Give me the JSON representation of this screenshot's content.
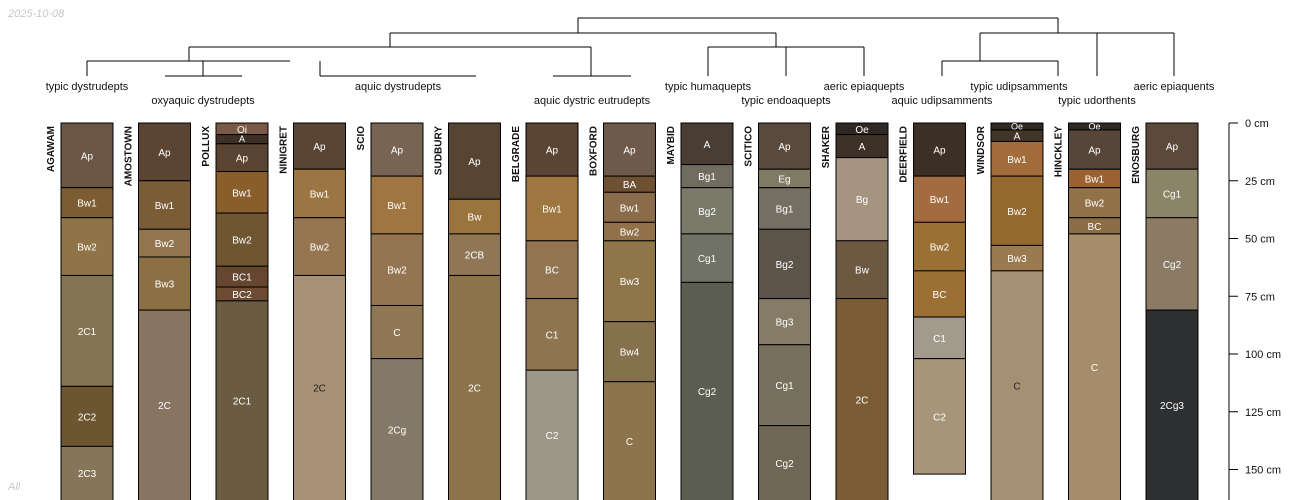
{
  "date": "2025-10-08",
  "footer": "All",
  "depth_axis": {
    "unit": "cm",
    "max": 162,
    "ticks": [
      {
        "depth": 0,
        "label": "0 cm"
      },
      {
        "depth": 25,
        "label": "25 cm"
      },
      {
        "depth": 50,
        "label": "50 cm"
      },
      {
        "depth": 75,
        "label": "75 cm"
      },
      {
        "depth": 100,
        "label": "100 cm"
      },
      {
        "depth": 125,
        "label": "125 cm"
      },
      {
        "depth": 150,
        "label": "150 cm"
      }
    ]
  },
  "taxa": [
    {
      "label": "typic dystrudepts",
      "row": 1
    },
    {
      "label": "oxyaquic dystrudepts",
      "row": 2
    },
    {
      "label": "aquic dystrudepts",
      "row": 1
    },
    {
      "label": "aquic dystric eutrudepts",
      "row": 2
    },
    {
      "label": "typic humaquepts",
      "row": 1
    },
    {
      "label": "typic endoaquepts",
      "row": 2
    },
    {
      "label": "aeric epiaquepts",
      "row": 1
    },
    {
      "label": "aquic udipsamments",
      "row": 2
    },
    {
      "label": "typic udipsamments",
      "row": 1
    },
    {
      "label": "typic udorthents",
      "row": 2
    },
    {
      "label": "aeric epiaquents",
      "row": 1
    }
  ],
  "profiles": [
    {
      "name": "AGAWAM",
      "horizons": [
        {
          "name": "Ap",
          "top": 0,
          "bottom": 28,
          "color": "#6b5646"
        },
        {
          "name": "Bw1",
          "top": 28,
          "bottom": 41,
          "color": "#7c5d33"
        },
        {
          "name": "Bw2",
          "top": 41,
          "bottom": 66,
          "color": "#8f7447"
        },
        {
          "name": "2C1",
          "top": 66,
          "bottom": 114,
          "color": "#857452"
        },
        {
          "name": "2C2",
          "top": 114,
          "bottom": 140,
          "color": "#6c5631"
        },
        {
          "name": "2C3",
          "top": 140,
          "bottom": 165,
          "color": "#857659"
        }
      ]
    },
    {
      "name": "AMOSTOWN",
      "horizons": [
        {
          "name": "Ap",
          "top": 0,
          "bottom": 25,
          "color": "#5b4532"
        },
        {
          "name": "Bw1",
          "top": 25,
          "bottom": 46,
          "color": "#7a5c36"
        },
        {
          "name": "Bw2",
          "top": 46,
          "bottom": 58,
          "color": "#92744f"
        },
        {
          "name": "Bw3",
          "top": 58,
          "bottom": 81,
          "color": "#8c7045"
        },
        {
          "name": "2C",
          "top": 81,
          "bottom": 165,
          "color": "#877562"
        }
      ]
    },
    {
      "name": "POLLUX",
      "horizons": [
        {
          "name": "Oi",
          "top": 0,
          "bottom": 5,
          "color": "#7a5a45"
        },
        {
          "name": "A",
          "top": 5,
          "bottom": 9,
          "color": "#3e3024"
        },
        {
          "name": "Ap",
          "top": 9,
          "bottom": 21,
          "color": "#5a4330"
        },
        {
          "name": "Bw1",
          "top": 21,
          "bottom": 39,
          "color": "#8a5e2a"
        },
        {
          "name": "Bw2",
          "top": 39,
          "bottom": 62,
          "color": "#6f5633"
        },
        {
          "name": "BC1",
          "top": 62,
          "bottom": 71,
          "color": "#654630"
        },
        {
          "name": "BC2",
          "top": 71,
          "bottom": 77,
          "color": "#6d4c33"
        },
        {
          "name": "2C1",
          "top": 77,
          "bottom": 165,
          "color": "#6b5b43"
        }
      ]
    },
    {
      "name": "NINIGRET",
      "horizons": [
        {
          "name": "Ap",
          "top": 0,
          "bottom": 20,
          "color": "#5a4535"
        },
        {
          "name": "Bw1",
          "top": 20,
          "bottom": 41,
          "color": "#9b7642"
        },
        {
          "name": "Bw2",
          "top": 41,
          "bottom": 66,
          "color": "#957651"
        },
        {
          "name": "2C",
          "top": 66,
          "bottom": 165,
          "color": "#a89174",
          "labelColor": "#222222"
        }
      ]
    },
    {
      "name": "SCIO",
      "horizons": [
        {
          "name": "Ap",
          "top": 0,
          "bottom": 23,
          "color": "#786452"
        },
        {
          "name": "Bw1",
          "top": 23,
          "bottom": 48,
          "color": "#9f7641"
        },
        {
          "name": "Bw2",
          "top": 48,
          "bottom": 79,
          "color": "#947553"
        },
        {
          "name": "C",
          "top": 79,
          "bottom": 102,
          "color": "#8f7755"
        },
        {
          "name": "2Cg",
          "top": 102,
          "bottom": 165,
          "color": "#847866"
        }
      ]
    },
    {
      "name": "SUDBURY",
      "horizons": [
        {
          "name": "Ap",
          "top": 0,
          "bottom": 33,
          "color": "#574533"
        },
        {
          "name": "Bw",
          "top": 33,
          "bottom": 48,
          "color": "#9a743d"
        },
        {
          "name": "2CB",
          "top": 48,
          "bottom": 66,
          "color": "#8f7655"
        },
        {
          "name": "2C",
          "top": 66,
          "bottom": 165,
          "color": "#8c744a"
        }
      ]
    },
    {
      "name": "BELGRADE",
      "horizons": [
        {
          "name": "Ap",
          "top": 0,
          "bottom": 23,
          "color": "#5a4535"
        },
        {
          "name": "Bw1",
          "top": 23,
          "bottom": 51,
          "color": "#9d7640"
        },
        {
          "name": "BC",
          "top": 51,
          "bottom": 76,
          "color": "#917550"
        },
        {
          "name": "C1",
          "top": 76,
          "bottom": 107,
          "color": "#8f7450"
        },
        {
          "name": "C2",
          "top": 107,
          "bottom": 165,
          "color": "#9c9788"
        }
      ]
    },
    {
      "name": "BOXFORD",
      "horizons": [
        {
          "name": "Ap",
          "top": 0,
          "bottom": 23,
          "color": "#6e5a4a"
        },
        {
          "name": "BA",
          "top": 23,
          "bottom": 30,
          "color": "#6e5033"
        },
        {
          "name": "Bw1",
          "top": 30,
          "bottom": 43,
          "color": "#8a6c4a"
        },
        {
          "name": "Bw2",
          "top": 43,
          "bottom": 51,
          "color": "#91714a"
        },
        {
          "name": "Bw3",
          "top": 51,
          "bottom": 86,
          "color": "#8f7649"
        },
        {
          "name": "Bw4",
          "top": 86,
          "bottom": 112,
          "color": "#85714b"
        },
        {
          "name": "C",
          "top": 112,
          "bottom": 165,
          "color": "#8c744d"
        }
      ]
    },
    {
      "name": "MAYBID",
      "horizons": [
        {
          "name": "A",
          "top": 0,
          "bottom": 18,
          "color": "#4a3d34"
        },
        {
          "name": "Bg1",
          "top": 18,
          "bottom": 28,
          "color": "#706c60"
        },
        {
          "name": "Bg2",
          "top": 28,
          "bottom": 48,
          "color": "#7a7a6b"
        },
        {
          "name": "Cg1",
          "top": 48,
          "bottom": 69,
          "color": "#6f7264"
        },
        {
          "name": "Cg2",
          "top": 69,
          "bottom": 165,
          "color": "#5b5d50"
        }
      ]
    },
    {
      "name": "SCITICO",
      "horizons": [
        {
          "name": "Ap",
          "top": 0,
          "bottom": 20,
          "color": "#5a4a3d"
        },
        {
          "name": "Eg",
          "top": 20,
          "bottom": 28,
          "color": "#7e7a63"
        },
        {
          "name": "Bg1",
          "top": 28,
          "bottom": 46,
          "color": "#736f62"
        },
        {
          "name": "Bg2",
          "top": 46,
          "bottom": 76,
          "color": "#5c5449"
        },
        {
          "name": "Bg3",
          "top": 76,
          "bottom": 96,
          "color": "#857b66"
        },
        {
          "name": "Cg1",
          "top": 96,
          "bottom": 131,
          "color": "#77705c"
        },
        {
          "name": "Cg2",
          "top": 131,
          "bottom": 165,
          "color": "#6f6754"
        }
      ]
    },
    {
      "name": "SHAKER",
      "horizons": [
        {
          "name": "Oe",
          "top": 0,
          "bottom": 5,
          "color": "#2f2722"
        },
        {
          "name": "A",
          "top": 5,
          "bottom": 15,
          "color": "#3d3128"
        },
        {
          "name": "Bg",
          "top": 15,
          "bottom": 51,
          "color": "#a59580"
        },
        {
          "name": "Bw",
          "top": 51,
          "bottom": 76,
          "color": "#6d5842"
        },
        {
          "name": "2C",
          "top": 76,
          "bottom": 165,
          "color": "#7c5c35"
        }
      ]
    },
    {
      "name": "DEERFIELD",
      "horizons": [
        {
          "name": "Ap",
          "top": 0,
          "bottom": 23,
          "color": "#3c2f25"
        },
        {
          "name": "Bw1",
          "top": 23,
          "bottom": 43,
          "color": "#a36b40"
        },
        {
          "name": "Bw2",
          "top": 43,
          "bottom": 64,
          "color": "#9a7035"
        },
        {
          "name": "BC",
          "top": 64,
          "bottom": 84,
          "color": "#9c7035"
        },
        {
          "name": "C1",
          "top": 84,
          "bottom": 102,
          "color": "#a39a8e"
        },
        {
          "name": "C2",
          "top": 102,
          "bottom": 152,
          "color": "#a69579"
        }
      ]
    },
    {
      "name": "WINDSOR",
      "horizons": [
        {
          "name": "Oe",
          "top": 0,
          "bottom": 3,
          "color": "#2e2822"
        },
        {
          "name": "A",
          "top": 3,
          "bottom": 8,
          "color": "#413428"
        },
        {
          "name": "Bw1",
          "top": 8,
          "bottom": 23,
          "color": "#a26d3b"
        },
        {
          "name": "Bw2",
          "top": 23,
          "bottom": 53,
          "color": "#93692f"
        },
        {
          "name": "Bw3",
          "top": 53,
          "bottom": 64,
          "color": "#9c7a50"
        },
        {
          "name": "C",
          "top": 64,
          "bottom": 165,
          "color": "#a59073",
          "labelColor": "#222222"
        }
      ]
    },
    {
      "name": "HINCKLEY",
      "horizons": [
        {
          "name": "Oe",
          "top": 0,
          "bottom": 3,
          "color": "#2e2822"
        },
        {
          "name": "Ap",
          "top": 3,
          "bottom": 20,
          "color": "#56463a"
        },
        {
          "name": "Bw1",
          "top": 20,
          "bottom": 28,
          "color": "#9b6130"
        },
        {
          "name": "Bw2",
          "top": 28,
          "bottom": 41,
          "color": "#927148"
        },
        {
          "name": "BC",
          "top": 41,
          "bottom": 48,
          "color": "#8b6d46"
        },
        {
          "name": "C",
          "top": 48,
          "bottom": 165,
          "color": "#a58c6a"
        }
      ]
    },
    {
      "name": "ENOSBURG",
      "horizons": [
        {
          "name": "Ap",
          "top": 0,
          "bottom": 20,
          "color": "#5b4a3a"
        },
        {
          "name": "Cg1",
          "top": 20,
          "bottom": 41,
          "color": "#8a8468"
        },
        {
          "name": "Cg2",
          "top": 41,
          "bottom": 81,
          "color": "#8b7b65"
        },
        {
          "name": "2Cg3",
          "top": 81,
          "bottom": 165,
          "color": "#2e2f31"
        }
      ]
    }
  ]
}
